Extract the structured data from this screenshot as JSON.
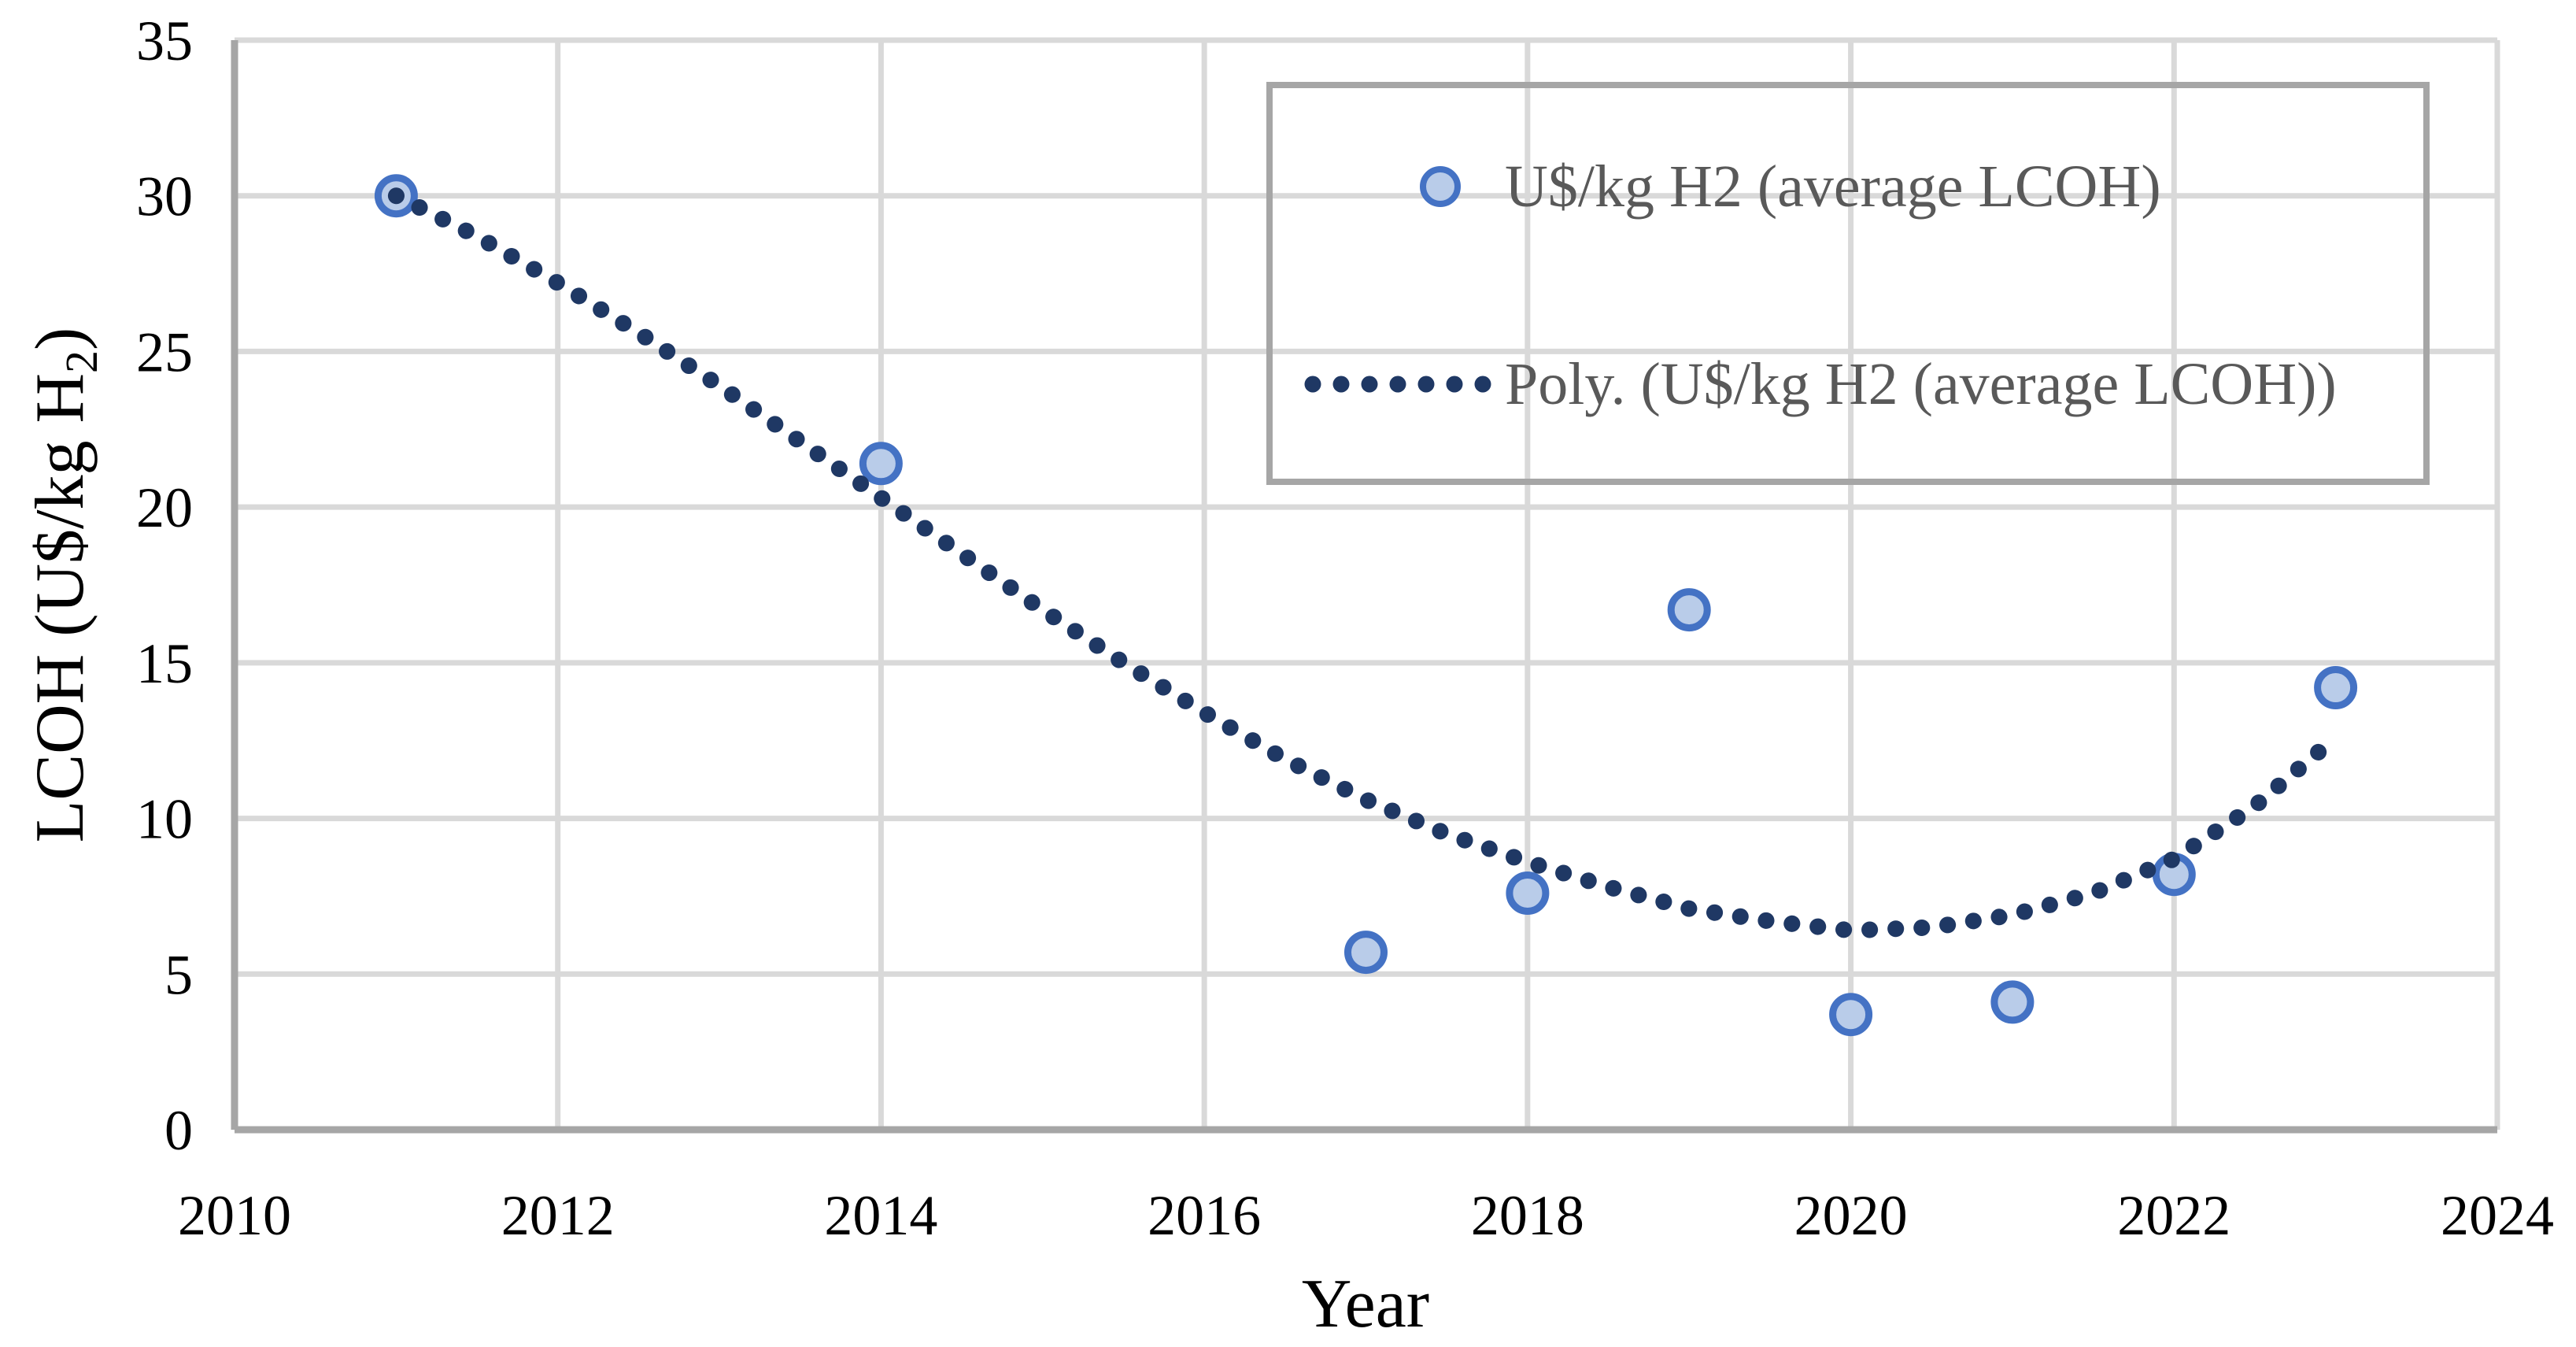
{
  "chart_data": {
    "type": "scatter",
    "title": "",
    "xlabel": "Year",
    "ylabel": "LCOH (U$/kg H2)",
    "ylabel_parts": [
      "LCOH (U$/kg H",
      "2",
      ")"
    ],
    "xlim": [
      2010,
      2024
    ],
    "ylim": [
      0,
      35
    ],
    "x_ticks": [
      2010,
      2012,
      2014,
      2016,
      2018,
      2020,
      2022,
      2024
    ],
    "y_ticks": [
      0,
      5,
      10,
      15,
      20,
      25,
      30,
      35
    ],
    "grid": "both",
    "series": [
      {
        "name": "U$/kg H2 (average LCOH)",
        "type": "scatter",
        "x": [
          2011,
          2014,
          2017,
          2018,
          2019,
          2020,
          2021,
          2022,
          2023
        ],
        "y": [
          30.0,
          21.4,
          5.7,
          7.6,
          16.7,
          3.7,
          4.1,
          8.2,
          14.2
        ]
      }
    ],
    "trendline": {
      "name": "Poly. (U$/kg H2 (average LCOH))",
      "style": "dotted",
      "x": [
        2011,
        2011.5,
        2012,
        2012.5,
        2013,
        2013.5,
        2014,
        2014.5,
        2015,
        2015.5,
        2016,
        2016.5,
        2017,
        2017.5,
        2018,
        2018.5,
        2019,
        2019.5,
        2020,
        2020.5,
        2021,
        2021.5,
        2022,
        2022.5,
        2023
      ],
      "y": [
        30.0,
        28.7,
        27.2,
        25.6,
        23.9,
        22.1,
        20.3,
        18.5,
        16.7,
        15.0,
        13.4,
        11.9,
        10.6,
        9.5,
        8.6,
        7.8,
        7.1,
        6.7,
        6.4,
        6.5,
        6.9,
        7.6,
        8.7,
        10.4,
        12.6
      ]
    },
    "legend": {
      "position": "top-right",
      "items": [
        {
          "label": "U$/kg H2 (average LCOH)",
          "icon": "circle-marker-icon"
        },
        {
          "label": "Poly. (U$/kg H2 (average LCOH))",
          "icon": "dotted-line-icon"
        }
      ]
    },
    "colors": {
      "marker_fill": "#b9cce9",
      "marker_stroke": "#4472c4",
      "trendline": "#1f3864",
      "gridline": "#d9d9d9",
      "axis_line": "#a6a6a6",
      "legend_border": "#a6a6a6",
      "legend_text": "#595959",
      "tick_text": "#000000"
    }
  }
}
